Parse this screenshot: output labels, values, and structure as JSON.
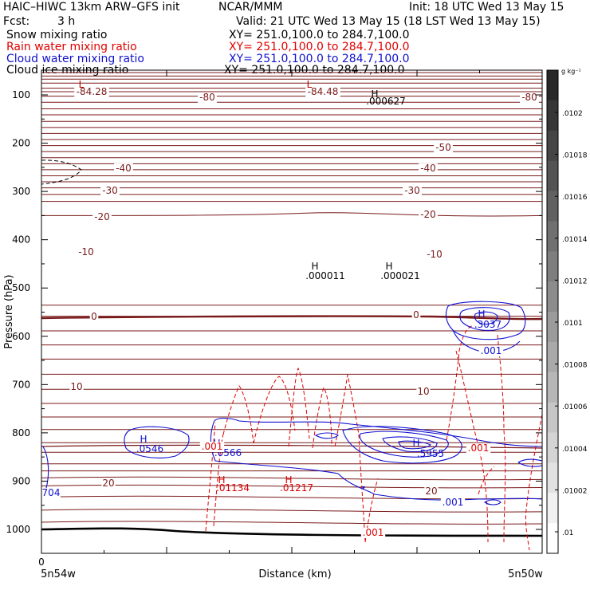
{
  "header": {
    "title": "HAIC–HIWC 13km ARW–GFS init",
    "org": "NCAR/MMM",
    "init": "Init: 18 UTC Wed 13 May 15",
    "fcst_label": "Fcst:",
    "fcst_value": "3 h",
    "valid": "Valid: 21 UTC Wed 13 May 15 (18 LST Wed 13 May 15)"
  },
  "fields": [
    {
      "name": "Snow mixing ratio",
      "xy": "XY= 251.0,100.0 to 284.7,100.0",
      "color": "#000000"
    },
    {
      "name": "Rain water mixing ratio",
      "xy": "XY= 251.0,100.0 to 284.7,100.0",
      "color": "#e00000"
    },
    {
      "name": "Cloud water mixing ratio",
      "xy": "XY= 251.0,100.0 to 284.7,100.0",
      "color": "#1010d0"
    },
    {
      "name": "Cloud ice mixing ratio",
      "xy": "XY= 251.0,100.0 to 284.7,100.0",
      "color": "#000000"
    }
  ],
  "chart_data": {
    "type": "contour",
    "xlabel": "Distance (km)",
    "ylabel": "Pressure (hPa)",
    "x_ticks": [
      "0"
    ],
    "x_endpoints": [
      "5n54w",
      "5n50w"
    ],
    "y_ticks": [
      100,
      200,
      300,
      400,
      500,
      600,
      700,
      800,
      900,
      1000
    ],
    "ylim": [
      1050,
      50
    ],
    "colorbar": {
      "unit": "g kg⁻¹",
      "labels": [
        ".0102",
        ".01018",
        ".01016",
        ".01014",
        ".01012",
        ".0101",
        ".01008",
        ".01006",
        ".01004",
        ".01002",
        ".01"
      ]
    },
    "temperature_labels": [
      "-84.28",
      "-84.48",
      "-80",
      "-80",
      "-50",
      "-40",
      "-40",
      "-30",
      "-30",
      "-20",
      "-20",
      "-10",
      "-10",
      "0",
      "0",
      "10",
      "10",
      "20",
      "20"
    ],
    "extrema": [
      {
        "mark": "L",
        "value": "",
        "color": "#c00000"
      },
      {
        "mark": "L",
        "value": "",
        "color": "#c00000"
      },
      {
        "mark": "H",
        "value": ".000627",
        "color": "#000000"
      },
      {
        "mark": "H",
        "value": ".000011",
        "color": "#000000"
      },
      {
        "mark": "H",
        "value": ".000021",
        "color": "#000000"
      },
      {
        "mark": "H",
        "value": ".3037",
        "color": "#1010d0"
      },
      {
        "mark": "H",
        "value": ".0546",
        "color": "#1010d0"
      },
      {
        "mark": "H",
        "value": ".0566",
        "color": "#1010d0"
      },
      {
        "mark": "H",
        "value": ".5955",
        "color": "#1010d0"
      },
      {
        "mark": "H",
        "value": ".01134",
        "color": "#e00000"
      },
      {
        "mark": "H",
        "value": ".01217",
        "color": "#e00000"
      }
    ],
    "contour_labels": [
      {
        "text": ".001",
        "color": "#1010d0"
      },
      {
        "text": ".001",
        "color": "#1010d0"
      },
      {
        "text": ".001",
        "color": "#e00000"
      },
      {
        "text": ".001",
        "color": "#e00000"
      },
      {
        "text": ".001",
        "color": "#e00000"
      },
      {
        "text": "704",
        "color": "#1010d0"
      }
    ],
    "colors": {
      "isotherm": "#7a1a1a",
      "ground": "#000000",
      "rain": "#e00000",
      "cloud": "#1010d0"
    }
  }
}
